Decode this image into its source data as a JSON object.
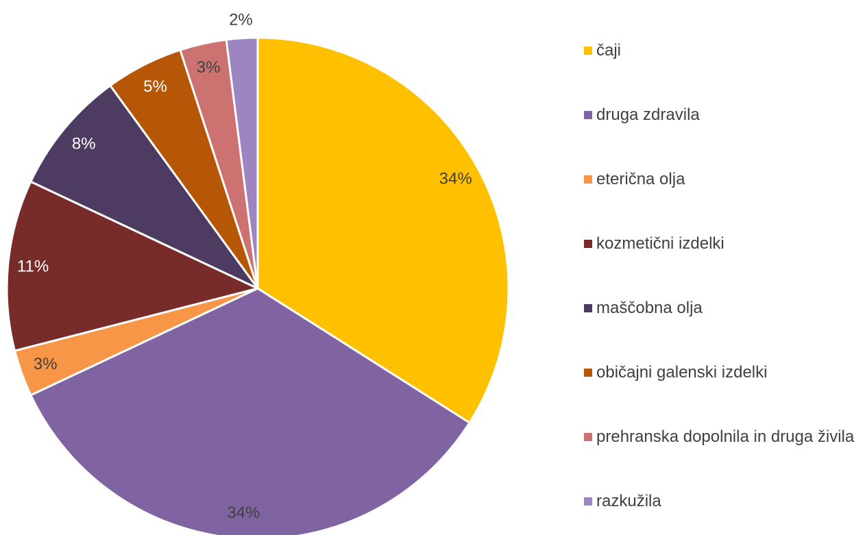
{
  "chart_data": {
    "type": "pie",
    "categories": [
      "čaji",
      "druga zdravila",
      "eterična olja",
      "kozmetični izdelki",
      "maščobna olja",
      "običajni galenski izdelki",
      "prehranska dopolnila in druga živila",
      "razkužila"
    ],
    "values": [
      34,
      34,
      3,
      11,
      8,
      5,
      3,
      2
    ],
    "value_labels": [
      "34%",
      "34%",
      "3%",
      "11%",
      "8%",
      "5%",
      "3%",
      "2%"
    ],
    "colors": [
      "#FFC000",
      "#8064A2",
      "#F79646",
      "#772C2A",
      "#4D3B62",
      "#B65708",
      "#CC7372",
      "#9C85C0"
    ],
    "legend": "right"
  }
}
